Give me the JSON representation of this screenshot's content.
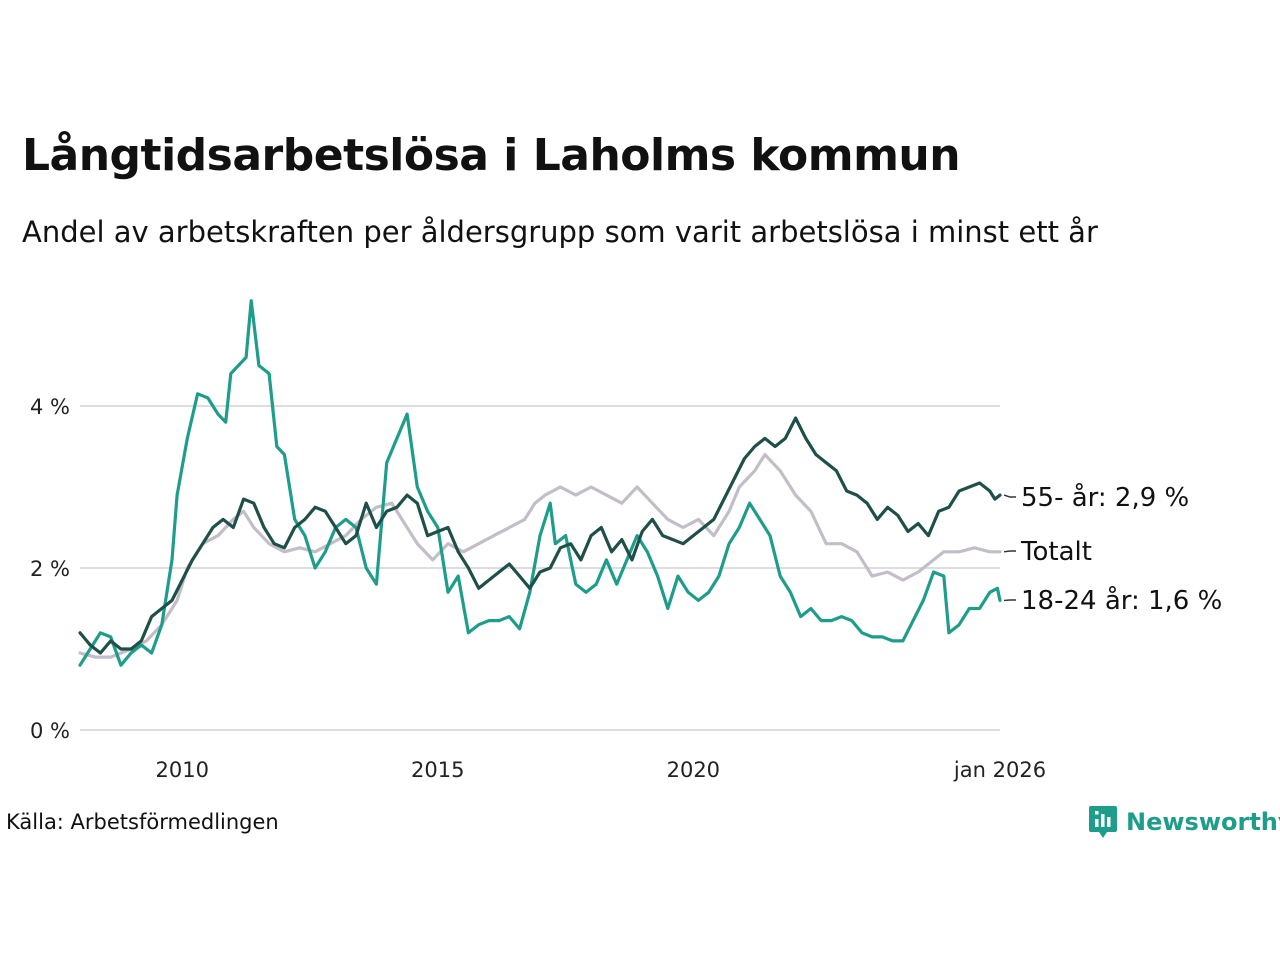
{
  "title": "Långtidsarbetslösa i Laholms kommun",
  "subtitle": "Andel av arbetskraften per åldersgrupp som varit arbetslösa i minst ett år",
  "source": "Källa: Arbetsförmedlingen",
  "brand": "Newsworthy",
  "colors": {
    "age55": "#1f4f49",
    "total": "#c3bdc8",
    "age18_24": "#1e9d8b",
    "grid": "#dddddd",
    "brand": "#1e9d8b"
  },
  "chart_data": {
    "type": "line",
    "title": "Långtidsarbetslösa i Laholms kommun",
    "xlabel": "",
    "ylabel": "",
    "xlim": [
      2008.0,
      2026.0
    ],
    "ylim": [
      0,
      4
    ],
    "y_ticks": [
      {
        "value": 0,
        "label": "0 %"
      },
      {
        "value": 2,
        "label": "2 %"
      },
      {
        "value": 4,
        "label": "4 %"
      }
    ],
    "x_ticks": [
      {
        "value": 2010.0,
        "label": "2010"
      },
      {
        "value": 2015.0,
        "label": "2015"
      },
      {
        "value": 2020.0,
        "label": "2020"
      },
      {
        "value": 2026.0,
        "label": "jan 2026"
      }
    ],
    "grid": true,
    "series": [
      {
        "key": "total",
        "name": "Totalt",
        "end_label": "Totalt",
        "color": "#c3bdc8",
        "points": [
          [
            2008.0,
            0.95
          ],
          [
            2008.3,
            0.9
          ],
          [
            2008.6,
            0.9
          ],
          [
            2009.0,
            1.0
          ],
          [
            2009.3,
            1.1
          ],
          [
            2009.6,
            1.3
          ],
          [
            2009.9,
            1.6
          ],
          [
            2010.1,
            2.0
          ],
          [
            2010.4,
            2.3
          ],
          [
            2010.7,
            2.4
          ],
          [
            2011.0,
            2.6
          ],
          [
            2011.2,
            2.7
          ],
          [
            2011.4,
            2.5
          ],
          [
            2011.7,
            2.3
          ],
          [
            2012.0,
            2.2
          ],
          [
            2012.3,
            2.25
          ],
          [
            2012.6,
            2.2
          ],
          [
            2012.9,
            2.3
          ],
          [
            2013.2,
            2.4
          ],
          [
            2013.5,
            2.6
          ],
          [
            2013.8,
            2.75
          ],
          [
            2014.1,
            2.8
          ],
          [
            2014.3,
            2.6
          ],
          [
            2014.6,
            2.3
          ],
          [
            2014.9,
            2.1
          ],
          [
            2015.2,
            2.3
          ],
          [
            2015.5,
            2.2
          ],
          [
            2015.8,
            2.3
          ],
          [
            2016.1,
            2.4
          ],
          [
            2016.4,
            2.5
          ],
          [
            2016.7,
            2.6
          ],
          [
            2016.9,
            2.8
          ],
          [
            2017.1,
            2.9
          ],
          [
            2017.4,
            3.0
          ],
          [
            2017.7,
            2.9
          ],
          [
            2018.0,
            3.0
          ],
          [
            2018.3,
            2.9
          ],
          [
            2018.6,
            2.8
          ],
          [
            2018.9,
            3.0
          ],
          [
            2019.2,
            2.8
          ],
          [
            2019.5,
            2.6
          ],
          [
            2019.8,
            2.5
          ],
          [
            2020.1,
            2.6
          ],
          [
            2020.4,
            2.4
          ],
          [
            2020.7,
            2.7
          ],
          [
            2020.9,
            3.0
          ],
          [
            2021.2,
            3.2
          ],
          [
            2021.4,
            3.4
          ],
          [
            2021.7,
            3.2
          ],
          [
            2022.0,
            2.9
          ],
          [
            2022.3,
            2.7
          ],
          [
            2022.6,
            2.3
          ],
          [
            2022.9,
            2.3
          ],
          [
            2023.2,
            2.2
          ],
          [
            2023.5,
            1.9
          ],
          [
            2023.8,
            1.95
          ],
          [
            2024.1,
            1.85
          ],
          [
            2024.4,
            1.95
          ],
          [
            2024.7,
            2.1
          ],
          [
            2024.9,
            2.2
          ],
          [
            2025.2,
            2.2
          ],
          [
            2025.5,
            2.25
          ],
          [
            2025.8,
            2.2
          ],
          [
            2026.0,
            2.2
          ]
        ]
      },
      {
        "key": "age18_24",
        "name": "18-24 år",
        "end_label": "18-24 år: 1,6 %",
        "color": "#1e9d8b",
        "points": [
          [
            2008.0,
            0.8
          ],
          [
            2008.2,
            1.0
          ],
          [
            2008.4,
            1.2
          ],
          [
            2008.6,
            1.15
          ],
          [
            2008.8,
            0.8
          ],
          [
            2009.0,
            0.95
          ],
          [
            2009.2,
            1.05
          ],
          [
            2009.4,
            0.95
          ],
          [
            2009.6,
            1.3
          ],
          [
            2009.8,
            2.1
          ],
          [
            2009.9,
            2.9
          ],
          [
            2010.1,
            3.6
          ],
          [
            2010.3,
            4.15
          ],
          [
            2010.5,
            4.1
          ],
          [
            2010.7,
            3.9
          ],
          [
            2010.85,
            3.8
          ],
          [
            2010.95,
            4.4
          ],
          [
            2011.1,
            4.5
          ],
          [
            2011.25,
            4.6
          ],
          [
            2011.35,
            5.3
          ],
          [
            2011.5,
            4.5
          ],
          [
            2011.7,
            4.4
          ],
          [
            2011.85,
            3.5
          ],
          [
            2012.0,
            3.4
          ],
          [
            2012.2,
            2.6
          ],
          [
            2012.4,
            2.4
          ],
          [
            2012.6,
            2.0
          ],
          [
            2012.8,
            2.2
          ],
          [
            2013.0,
            2.5
          ],
          [
            2013.2,
            2.6
          ],
          [
            2013.4,
            2.5
          ],
          [
            2013.6,
            2.0
          ],
          [
            2013.8,
            1.8
          ],
          [
            2014.0,
            3.3
          ],
          [
            2014.2,
            3.6
          ],
          [
            2014.4,
            3.9
          ],
          [
            2014.6,
            3.0
          ],
          [
            2014.8,
            2.7
          ],
          [
            2015.0,
            2.5
          ],
          [
            2015.2,
            1.7
          ],
          [
            2015.4,
            1.9
          ],
          [
            2015.6,
            1.2
          ],
          [
            2015.8,
            1.3
          ],
          [
            2016.0,
            1.35
          ],
          [
            2016.2,
            1.35
          ],
          [
            2016.4,
            1.4
          ],
          [
            2016.6,
            1.25
          ],
          [
            2016.8,
            1.7
          ],
          [
            2017.0,
            2.4
          ],
          [
            2017.2,
            2.8
          ],
          [
            2017.3,
            2.3
          ],
          [
            2017.5,
            2.4
          ],
          [
            2017.7,
            1.8
          ],
          [
            2017.9,
            1.7
          ],
          [
            2018.1,
            1.8
          ],
          [
            2018.3,
            2.1
          ],
          [
            2018.5,
            1.8
          ],
          [
            2018.7,
            2.1
          ],
          [
            2018.9,
            2.4
          ],
          [
            2019.1,
            2.2
          ],
          [
            2019.3,
            1.9
          ],
          [
            2019.5,
            1.5
          ],
          [
            2019.7,
            1.9
          ],
          [
            2019.9,
            1.7
          ],
          [
            2020.1,
            1.6
          ],
          [
            2020.3,
            1.7
          ],
          [
            2020.5,
            1.9
          ],
          [
            2020.7,
            2.3
          ],
          [
            2020.9,
            2.5
          ],
          [
            2021.1,
            2.8
          ],
          [
            2021.3,
            2.6
          ],
          [
            2021.5,
            2.4
          ],
          [
            2021.7,
            1.9
          ],
          [
            2021.9,
            1.7
          ],
          [
            2022.1,
            1.4
          ],
          [
            2022.3,
            1.5
          ],
          [
            2022.5,
            1.35
          ],
          [
            2022.7,
            1.35
          ],
          [
            2022.9,
            1.4
          ],
          [
            2023.1,
            1.35
          ],
          [
            2023.3,
            1.2
          ],
          [
            2023.5,
            1.15
          ],
          [
            2023.7,
            1.15
          ],
          [
            2023.9,
            1.1
          ],
          [
            2024.1,
            1.1
          ],
          [
            2024.3,
            1.35
          ],
          [
            2024.5,
            1.6
          ],
          [
            2024.7,
            1.95
          ],
          [
            2024.9,
            1.9
          ],
          [
            2025.0,
            1.2
          ],
          [
            2025.2,
            1.3
          ],
          [
            2025.4,
            1.5
          ],
          [
            2025.6,
            1.5
          ],
          [
            2025.8,
            1.7
          ],
          [
            2025.95,
            1.75
          ],
          [
            2026.0,
            1.6
          ]
        ]
      },
      {
        "key": "age55",
        "name": "55- år",
        "end_label": "55- år: 2,9 %",
        "color": "#1f4f49",
        "points": [
          [
            2008.0,
            1.2
          ],
          [
            2008.2,
            1.05
          ],
          [
            2008.4,
            0.95
          ],
          [
            2008.6,
            1.1
          ],
          [
            2008.8,
            1.0
          ],
          [
            2009.0,
            1.0
          ],
          [
            2009.2,
            1.1
          ],
          [
            2009.4,
            1.4
          ],
          [
            2009.6,
            1.5
          ],
          [
            2009.8,
            1.6
          ],
          [
            2010.0,
            1.85
          ],
          [
            2010.2,
            2.1
          ],
          [
            2010.4,
            2.3
          ],
          [
            2010.6,
            2.5
          ],
          [
            2010.8,
            2.6
          ],
          [
            2011.0,
            2.5
          ],
          [
            2011.2,
            2.85
          ],
          [
            2011.4,
            2.8
          ],
          [
            2011.6,
            2.5
          ],
          [
            2011.8,
            2.3
          ],
          [
            2012.0,
            2.25
          ],
          [
            2012.2,
            2.5
          ],
          [
            2012.4,
            2.6
          ],
          [
            2012.6,
            2.75
          ],
          [
            2012.8,
            2.7
          ],
          [
            2013.0,
            2.5
          ],
          [
            2013.2,
            2.3
          ],
          [
            2013.4,
            2.4
          ],
          [
            2013.6,
            2.8
          ],
          [
            2013.8,
            2.5
          ],
          [
            2014.0,
            2.7
          ],
          [
            2014.2,
            2.75
          ],
          [
            2014.4,
            2.9
          ],
          [
            2014.6,
            2.8
          ],
          [
            2014.8,
            2.4
          ],
          [
            2015.0,
            2.45
          ],
          [
            2015.2,
            2.5
          ],
          [
            2015.4,
            2.2
          ],
          [
            2015.6,
            2.0
          ],
          [
            2015.8,
            1.75
          ],
          [
            2016.0,
            1.85
          ],
          [
            2016.2,
            1.95
          ],
          [
            2016.4,
            2.05
          ],
          [
            2016.6,
            1.9
          ],
          [
            2016.8,
            1.75
          ],
          [
            2017.0,
            1.95
          ],
          [
            2017.2,
            2.0
          ],
          [
            2017.4,
            2.25
          ],
          [
            2017.6,
            2.3
          ],
          [
            2017.8,
            2.1
          ],
          [
            2018.0,
            2.4
          ],
          [
            2018.2,
            2.5
          ],
          [
            2018.4,
            2.2
          ],
          [
            2018.6,
            2.35
          ],
          [
            2018.8,
            2.1
          ],
          [
            2019.0,
            2.45
          ],
          [
            2019.2,
            2.6
          ],
          [
            2019.4,
            2.4
          ],
          [
            2019.6,
            2.35
          ],
          [
            2019.8,
            2.3
          ],
          [
            2020.0,
            2.4
          ],
          [
            2020.2,
            2.5
          ],
          [
            2020.4,
            2.6
          ],
          [
            2020.6,
            2.85
          ],
          [
            2020.8,
            3.1
          ],
          [
            2021.0,
            3.35
          ],
          [
            2021.2,
            3.5
          ],
          [
            2021.4,
            3.6
          ],
          [
            2021.6,
            3.5
          ],
          [
            2021.8,
            3.6
          ],
          [
            2022.0,
            3.85
          ],
          [
            2022.2,
            3.6
          ],
          [
            2022.4,
            3.4
          ],
          [
            2022.6,
            3.3
          ],
          [
            2022.8,
            3.2
          ],
          [
            2023.0,
            2.95
          ],
          [
            2023.2,
            2.9
          ],
          [
            2023.4,
            2.8
          ],
          [
            2023.6,
            2.6
          ],
          [
            2023.8,
            2.75
          ],
          [
            2024.0,
            2.65
          ],
          [
            2024.2,
            2.45
          ],
          [
            2024.4,
            2.55
          ],
          [
            2024.6,
            2.4
          ],
          [
            2024.8,
            2.7
          ],
          [
            2025.0,
            2.75
          ],
          [
            2025.2,
            2.95
          ],
          [
            2025.4,
            3.0
          ],
          [
            2025.6,
            3.05
          ],
          [
            2025.8,
            2.95
          ],
          [
            2025.9,
            2.85
          ],
          [
            2026.0,
            2.9
          ]
        ]
      }
    ]
  }
}
